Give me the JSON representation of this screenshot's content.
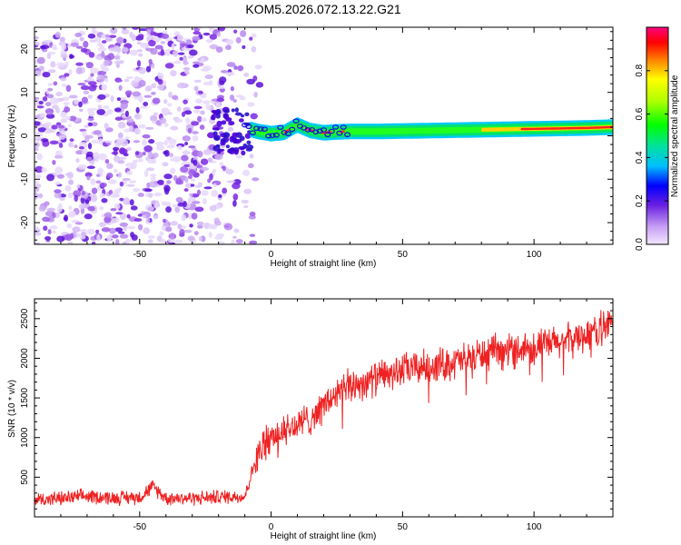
{
  "title": "KOM5.2026.072.13.22.G21",
  "colors": {
    "axis": "#000000",
    "snr_line": "#ee2222",
    "background": "#ffffff"
  },
  "chart_data": [
    {
      "type": "heatmap",
      "name": "spectrogram",
      "xlabel": "Height of straight line (km)",
      "ylabel": "Frequency (Hz)",
      "xlim": [
        -90,
        130
      ],
      "ylim": [
        -25,
        25
      ],
      "xticks": [
        -50,
        0,
        50,
        100
      ],
      "yticks": [
        -20,
        -10,
        0,
        10,
        20
      ],
      "noise_region_x": [
        -90,
        -8
      ],
      "signal_track": {
        "x": [
          -8,
          -5,
          0,
          5,
          10,
          15,
          20,
          25,
          30,
          40,
          50,
          60,
          70,
          80,
          90,
          100,
          110,
          120,
          130
        ],
        "frequency": [
          1.5,
          1.0,
          0.5,
          0.8,
          2.5,
          1.2,
          0.7,
          0.9,
          1.0,
          1.0,
          1.1,
          1.2,
          1.3,
          1.4,
          1.5,
          1.6,
          1.7,
          1.8,
          2.0
        ]
      },
      "colorbar": {
        "label": "Normalized spectral amplitude",
        "range": [
          0.0,
          1.0
        ],
        "ticks": [
          "0.0",
          "0.2",
          "0.4",
          "0.6",
          "0.8"
        ]
      }
    },
    {
      "type": "line",
      "name": "snr",
      "xlabel": "Height of straight line (km)",
      "ylabel": "SNR (10 * v/v)",
      "xlim": [
        -90,
        130
      ],
      "ylim": [
        0,
        2750
      ],
      "xticks": [
        -50,
        0,
        50,
        100
      ],
      "yticks": [
        500,
        1000,
        1500,
        2000,
        2500
      ],
      "series": [
        {
          "name": "SNR",
          "x": [
            -90,
            -80,
            -70,
            -60,
            -50,
            -45,
            -40,
            -30,
            -20,
            -10,
            -6,
            -3,
            0,
            5,
            10,
            15,
            20,
            25,
            30,
            40,
            50,
            60,
            70,
            80,
            90,
            100,
            110,
            120,
            130
          ],
          "values": [
            220,
            230,
            260,
            240,
            250,
            380,
            240,
            235,
            250,
            260,
            700,
            900,
            1000,
            1100,
            1150,
            1250,
            1400,
            1550,
            1650,
            1750,
            1850,
            1900,
            1950,
            2050,
            2100,
            2150,
            2200,
            2300,
            2450
          ]
        }
      ]
    }
  ]
}
